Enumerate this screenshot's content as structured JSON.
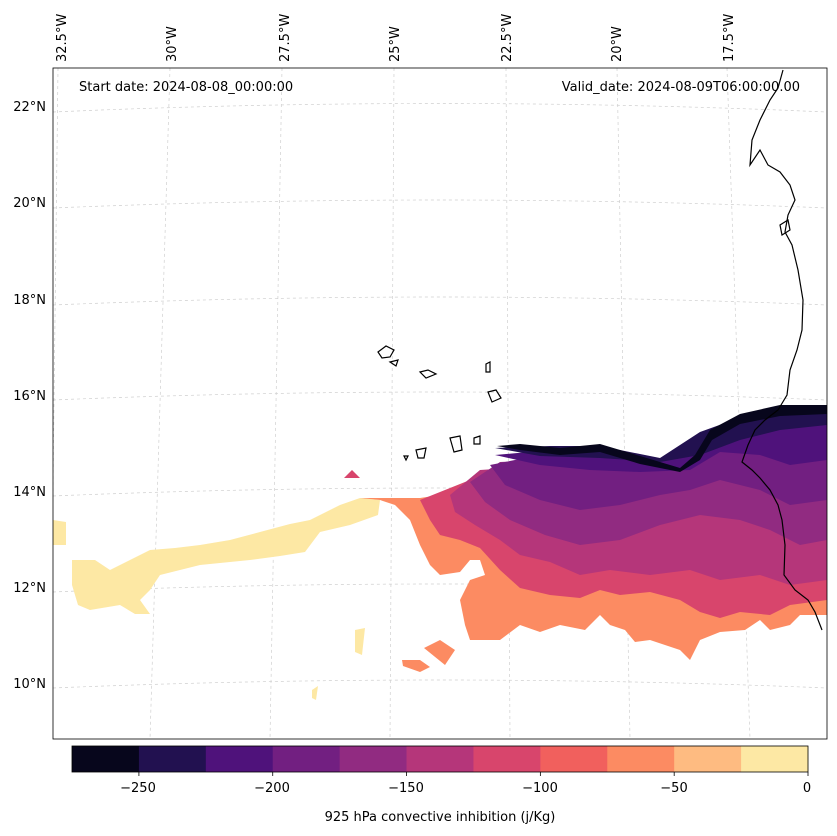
{
  "map": {
    "start_date": "Start date: 2024-08-08_00:00:00",
    "valid_date": "Valid_date: 2024-08-09T06:00:00.00",
    "lon_labels": [
      "32.5°W",
      "30°W",
      "27.5°W",
      "25°W",
      "22.5°W",
      "20°W",
      "17.5°W"
    ],
    "lat_labels": [
      "22°N",
      "20°N",
      "18°N",
      "16°N",
      "14°N",
      "12°N",
      "10°N"
    ],
    "gridlines": true,
    "variable": "925 hPa convective inhibition"
  },
  "colorbar": {
    "label": "925 hPa convective inhibition (j/Kg)",
    "tick_labels": [
      "−250",
      "−200",
      "−150",
      "−100",
      "−50",
      "0"
    ],
    "levels": [
      -275,
      -250,
      -225,
      -200,
      -175,
      -150,
      -125,
      -100,
      -75,
      -50,
      -25,
      0
    ],
    "colors": [
      "#07061c",
      "#221150",
      "#4f127b",
      "#721f81",
      "#912b81",
      "#b5367a",
      "#d8456c",
      "#f1605d",
      "#fc8b62",
      "#febb81",
      "#fde8a4"
    ]
  },
  "icons": {
    "coastline": "coastline-outline",
    "islands": "cape-verde-islands-outline"
  }
}
